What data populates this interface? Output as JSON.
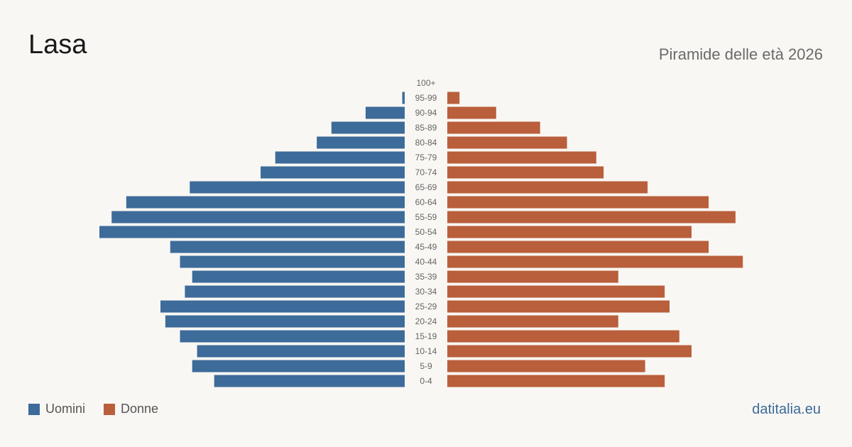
{
  "title": "Lasa",
  "subtitle": "Piramide delle età 2026",
  "site": "datitalia.eu",
  "colors": {
    "men": "#3d6b9a",
    "women": "#b95f3c",
    "label": "#666666"
  },
  "chart_data": {
    "type": "bar",
    "orientation": "horizontal-pyramid",
    "categories": [
      "100+",
      "95-99",
      "90-94",
      "85-89",
      "80-84",
      "75-79",
      "70-74",
      "65-69",
      "60-64",
      "55-59",
      "50-54",
      "45-49",
      "40-44",
      "35-39",
      "30-34",
      "25-29",
      "20-24",
      "15-19",
      "10-14",
      "5-9",
      "0-4"
    ],
    "series": [
      {
        "name": "Uomini",
        "values": [
          0,
          1,
          16,
          30,
          36,
          53,
          59,
          88,
          114,
          120,
          125,
          96,
          92,
          87,
          90,
          100,
          98,
          92,
          85,
          87,
          78
        ]
      },
      {
        "name": "Donne",
        "values": [
          0,
          5,
          20,
          38,
          49,
          61,
          64,
          82,
          107,
          118,
          100,
          107,
          121,
          70,
          89,
          91,
          70,
          95,
          100,
          81,
          89
        ]
      }
    ],
    "grid": false,
    "legend": "bottom-left"
  }
}
